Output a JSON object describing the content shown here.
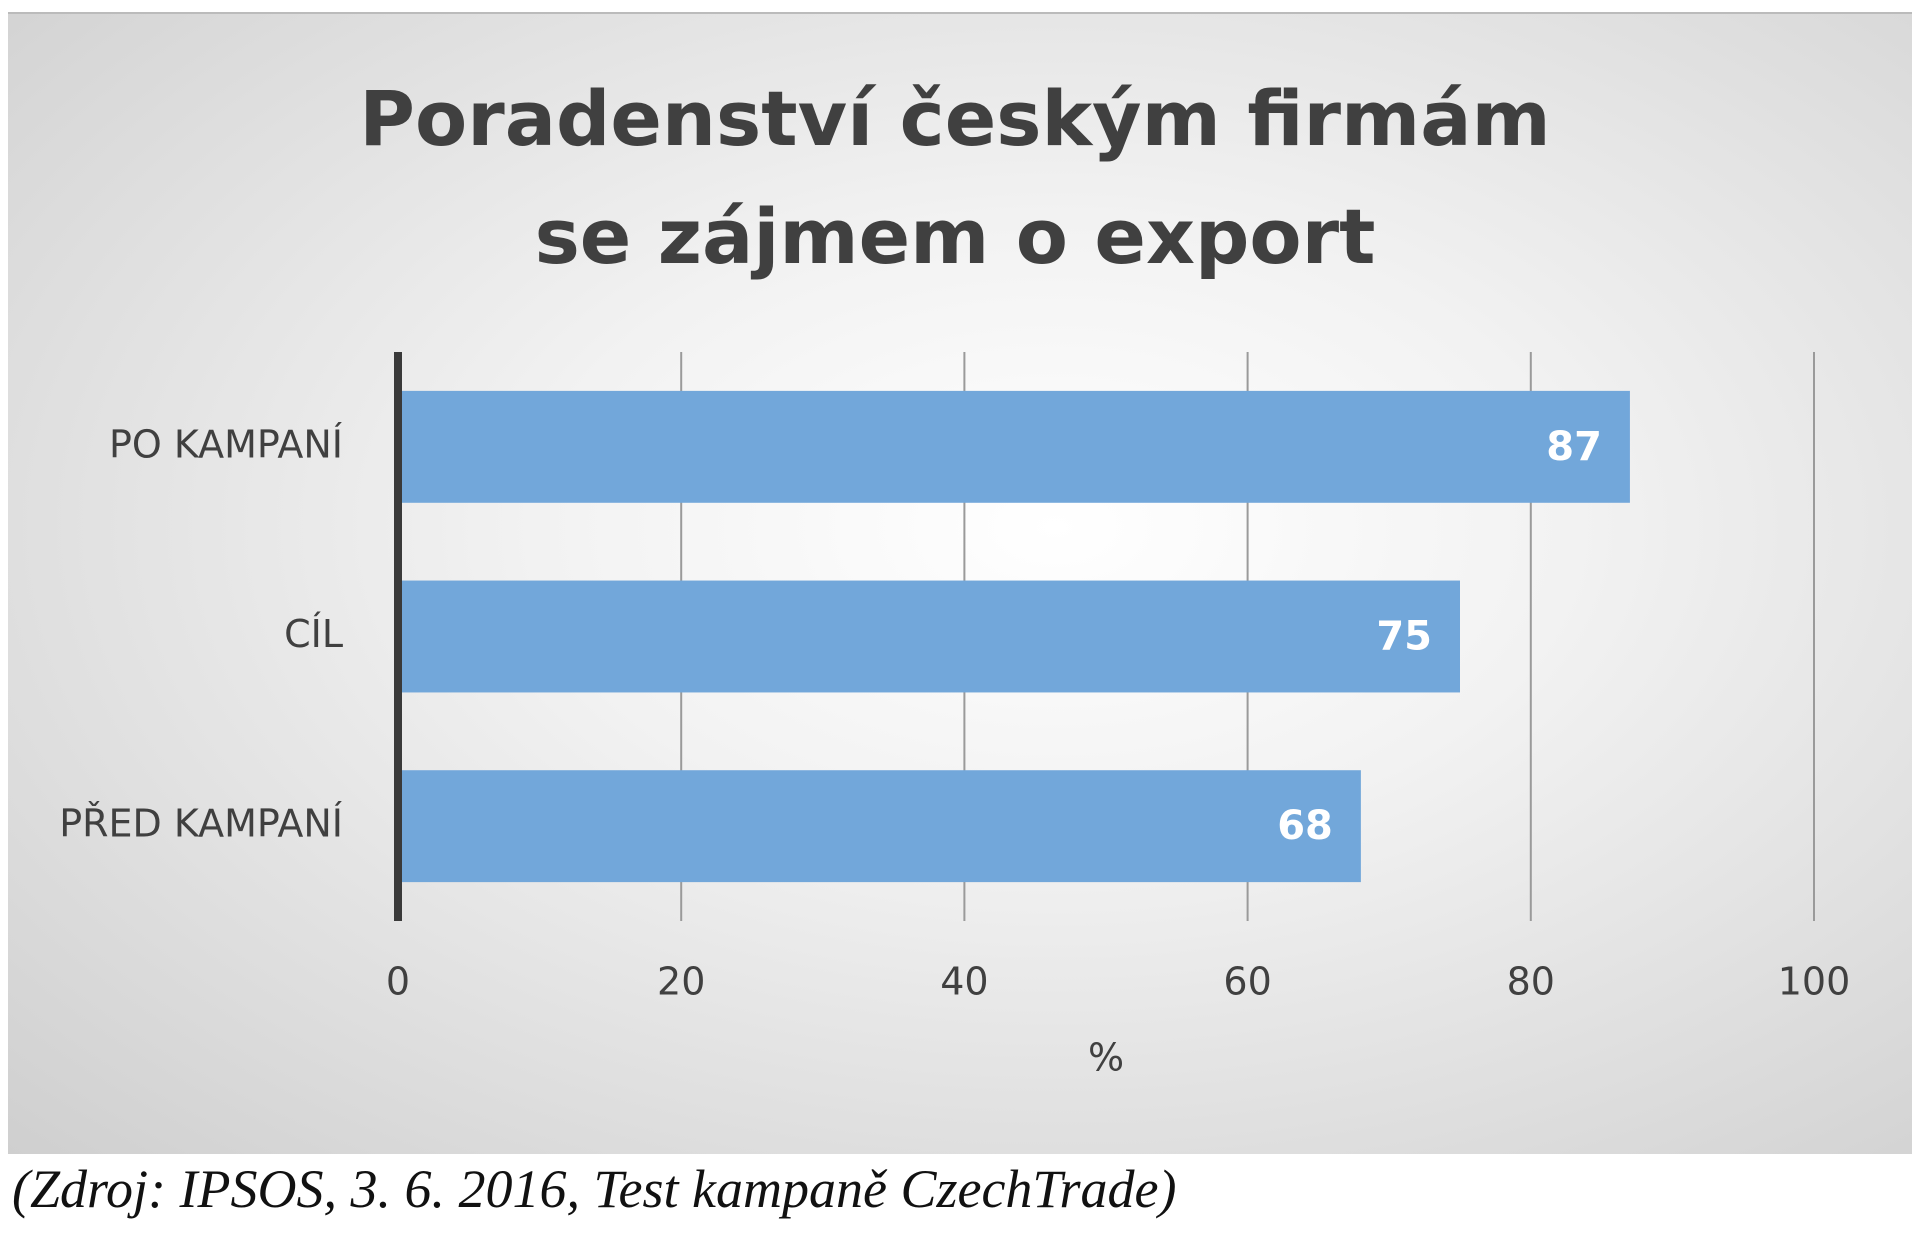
{
  "chart_data": {
    "type": "barh",
    "title": "Poradenství českým firmám se zájmem o export",
    "categories": [
      "PO KAMPANÍ",
      "CÍL",
      "PŘED KAMPANÍ"
    ],
    "values": [
      87,
      75,
      68
    ],
    "color": "#72a7da",
    "xlim": [
      0,
      100
    ],
    "xticks": [
      0,
      20,
      40,
      60,
      80,
      100
    ],
    "x_label": "%",
    "grid": true,
    "source": "(Zdroj: IPSOS, 3. 6. 2016, Test kampaně CzechTrade)"
  }
}
